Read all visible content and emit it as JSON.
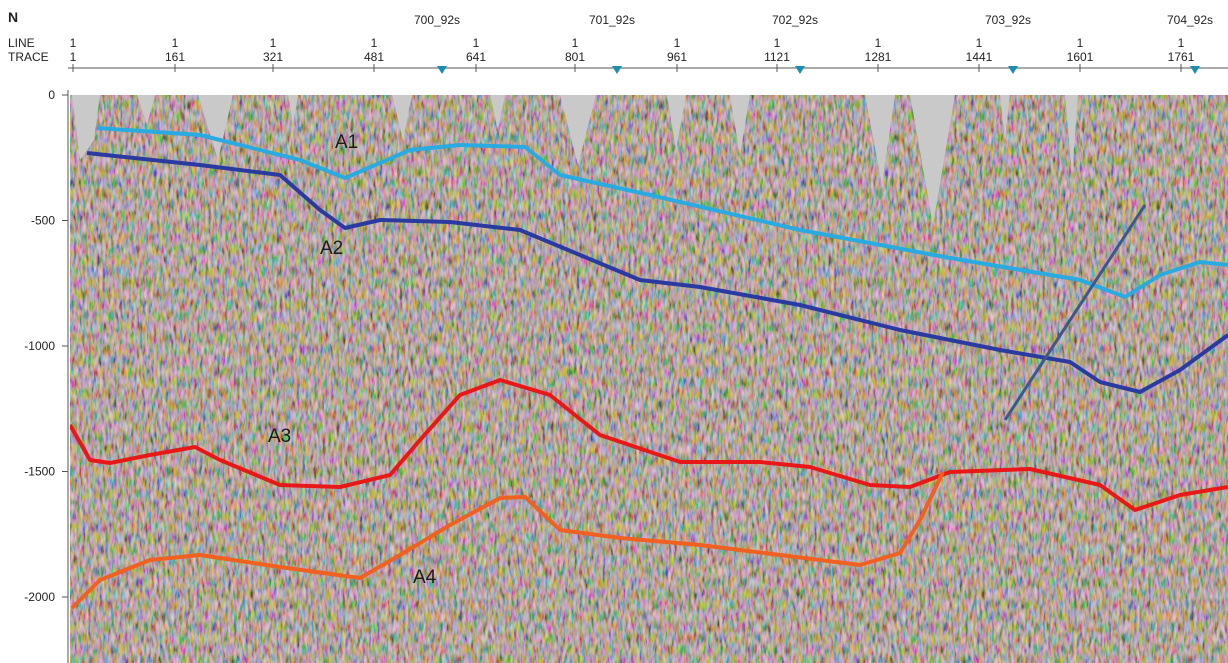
{
  "header": {
    "north": "N",
    "line_label": "LINE",
    "trace_label": "TRACE",
    "lines": [
      "700_92s",
      "701_92s",
      "702_92s",
      "703_92s",
      "704_92s"
    ]
  },
  "traces": [
    {
      "line": "1",
      "trace": "1"
    },
    {
      "line": "1",
      "trace": "161"
    },
    {
      "line": "1",
      "trace": "321"
    },
    {
      "line": "1",
      "trace": "481"
    },
    {
      "line": "1",
      "trace": "641"
    },
    {
      "line": "1",
      "trace": "801"
    },
    {
      "line": "1",
      "trace": "961"
    },
    {
      "line": "1",
      "trace": "1121"
    },
    {
      "line": "1",
      "trace": "1281"
    },
    {
      "line": "1",
      "trace": "1441"
    },
    {
      "line": "1",
      "trace": "1601"
    },
    {
      "line": "1",
      "trace": "1761"
    }
  ],
  "depth_ticks": [
    "0",
    "-500",
    "-1000",
    "-1500",
    "-2000"
  ],
  "horizons": [
    "A1",
    "A2",
    "A3",
    "A4"
  ]
}
